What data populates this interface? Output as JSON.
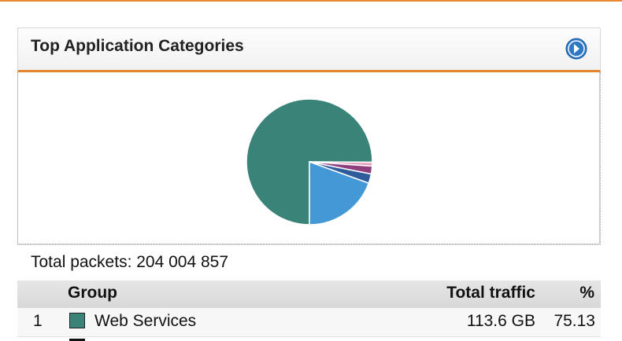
{
  "header": {
    "title": "Top Application Categories"
  },
  "chart_data": {
    "type": "pie",
    "categories": [
      "Web Services",
      null,
      null,
      null,
      null
    ],
    "values": [
      75.13,
      1.0,
      2.0,
      2.4,
      19.5
    ],
    "colors": [
      "#3a8379",
      "#e9a3c4",
      "#8e3e7c",
      "#2f5d9b",
      "#4598d6"
    ]
  },
  "total_label": "Total packets: 204 004 857",
  "table": {
    "columns": [
      "Group",
      "Total traffic",
      "%"
    ],
    "rows": [
      [
        "1",
        "Web Services",
        "113.6 GB",
        "75.13"
      ]
    ]
  }
}
